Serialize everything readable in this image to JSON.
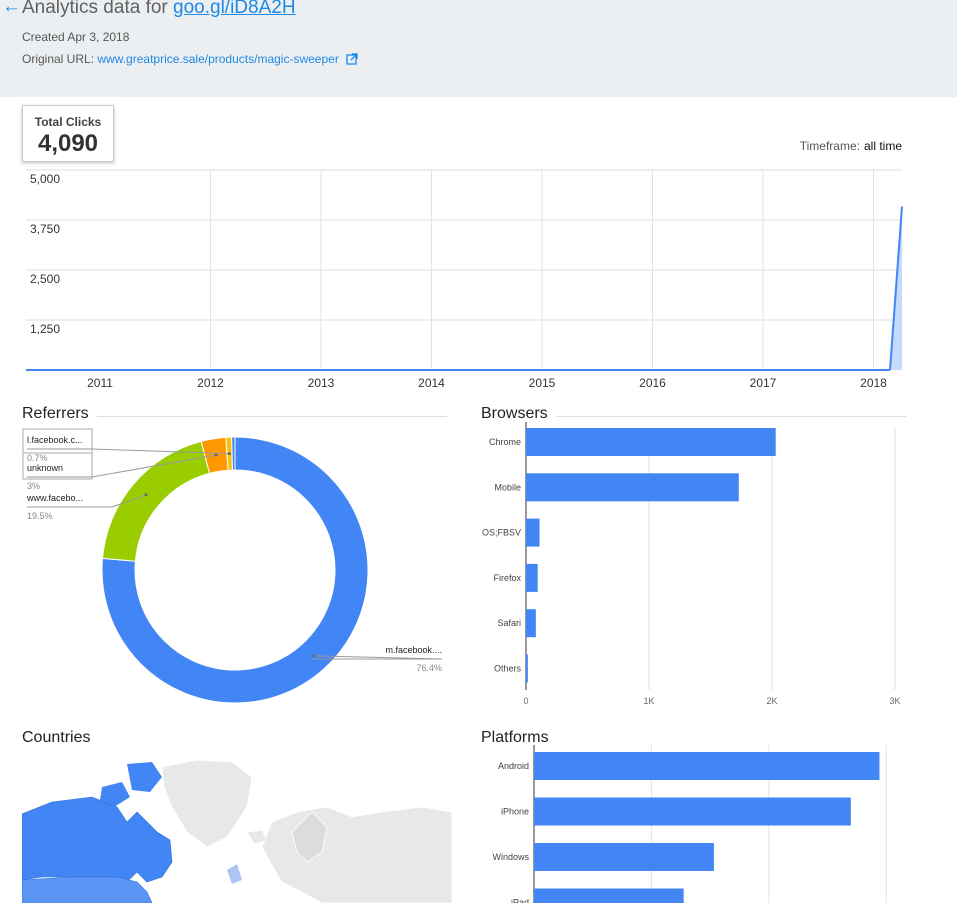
{
  "header": {
    "title_prefix": "Analytics data for",
    "short_url": "goo.gl/iD8A2H",
    "created": "Created Apr 3, 2018",
    "original_url_label": "Original URL:",
    "original_url": "www.greatprice.sale/products/magic-sweeper"
  },
  "summary": {
    "total_clicks_label": "Total Clicks",
    "total_clicks_value": "4,090",
    "timeframe_label": "Timeframe:",
    "timeframe_value": "all time"
  },
  "colors": {
    "accent": "#1e88e5",
    "bar": "#4285f4",
    "green": "#9acd00",
    "orange": "#ff9800",
    "yellow": "#f4c20d",
    "area_fill": "#c6dafc"
  },
  "sections": {
    "referrers": "Referrers",
    "browsers": "Browsers",
    "countries": "Countries",
    "platforms": "Platforms"
  },
  "chart_data": [
    {
      "type": "area",
      "title": "",
      "x": [
        "2011",
        "2012",
        "2013",
        "2014",
        "2015",
        "2016",
        "2017",
        "2018"
      ],
      "series": [
        {
          "values": [
            0,
            0,
            0,
            0,
            0,
            0,
            0,
            4090
          ]
        }
      ],
      "y_ticks": [
        "5,000",
        "3,750",
        "2,500",
        "1,250"
      ],
      "ylim": [
        0,
        5000
      ],
      "grid": true
    },
    {
      "type": "pie",
      "title": "Referrers",
      "slices": [
        {
          "label": "m.facebook....",
          "percent_label": "76.4%",
          "value": 76.4,
          "color": "#4285f4"
        },
        {
          "label": "www.facebo...",
          "percent_label": "19.5%",
          "value": 19.5,
          "color": "#9acd00"
        },
        {
          "label": "unknown",
          "percent_label": "3%",
          "value": 3.0,
          "color": "#ff9800"
        },
        {
          "label": "l.facebook.c...",
          "percent_label": "0.7%",
          "value": 0.7,
          "color": "#f4c20d"
        },
        {
          "label": "",
          "percent_label": "",
          "value": 0.4,
          "color": "#4285f4"
        }
      ]
    },
    {
      "type": "bar",
      "title": "Browsers",
      "orientation": "horizontal",
      "categories": [
        "Chrome",
        "Mobile",
        "OS;FBSV",
        "Firefox",
        "Safari",
        "Others"
      ],
      "values": [
        2030,
        1730,
        110,
        95,
        80,
        15
      ],
      "xlim": [
        0,
        3000
      ],
      "x_ticks": [
        "0",
        "1K",
        "2K",
        "3K"
      ]
    },
    {
      "type": "bar",
      "title": "Platforms",
      "orientation": "horizontal",
      "categories": [
        "Android",
        "iPhone",
        "Windows",
        "iPad"
      ],
      "values": [
        2170,
        1990,
        1130,
        940
      ],
      "xlim": [
        0,
        2500
      ]
    }
  ]
}
